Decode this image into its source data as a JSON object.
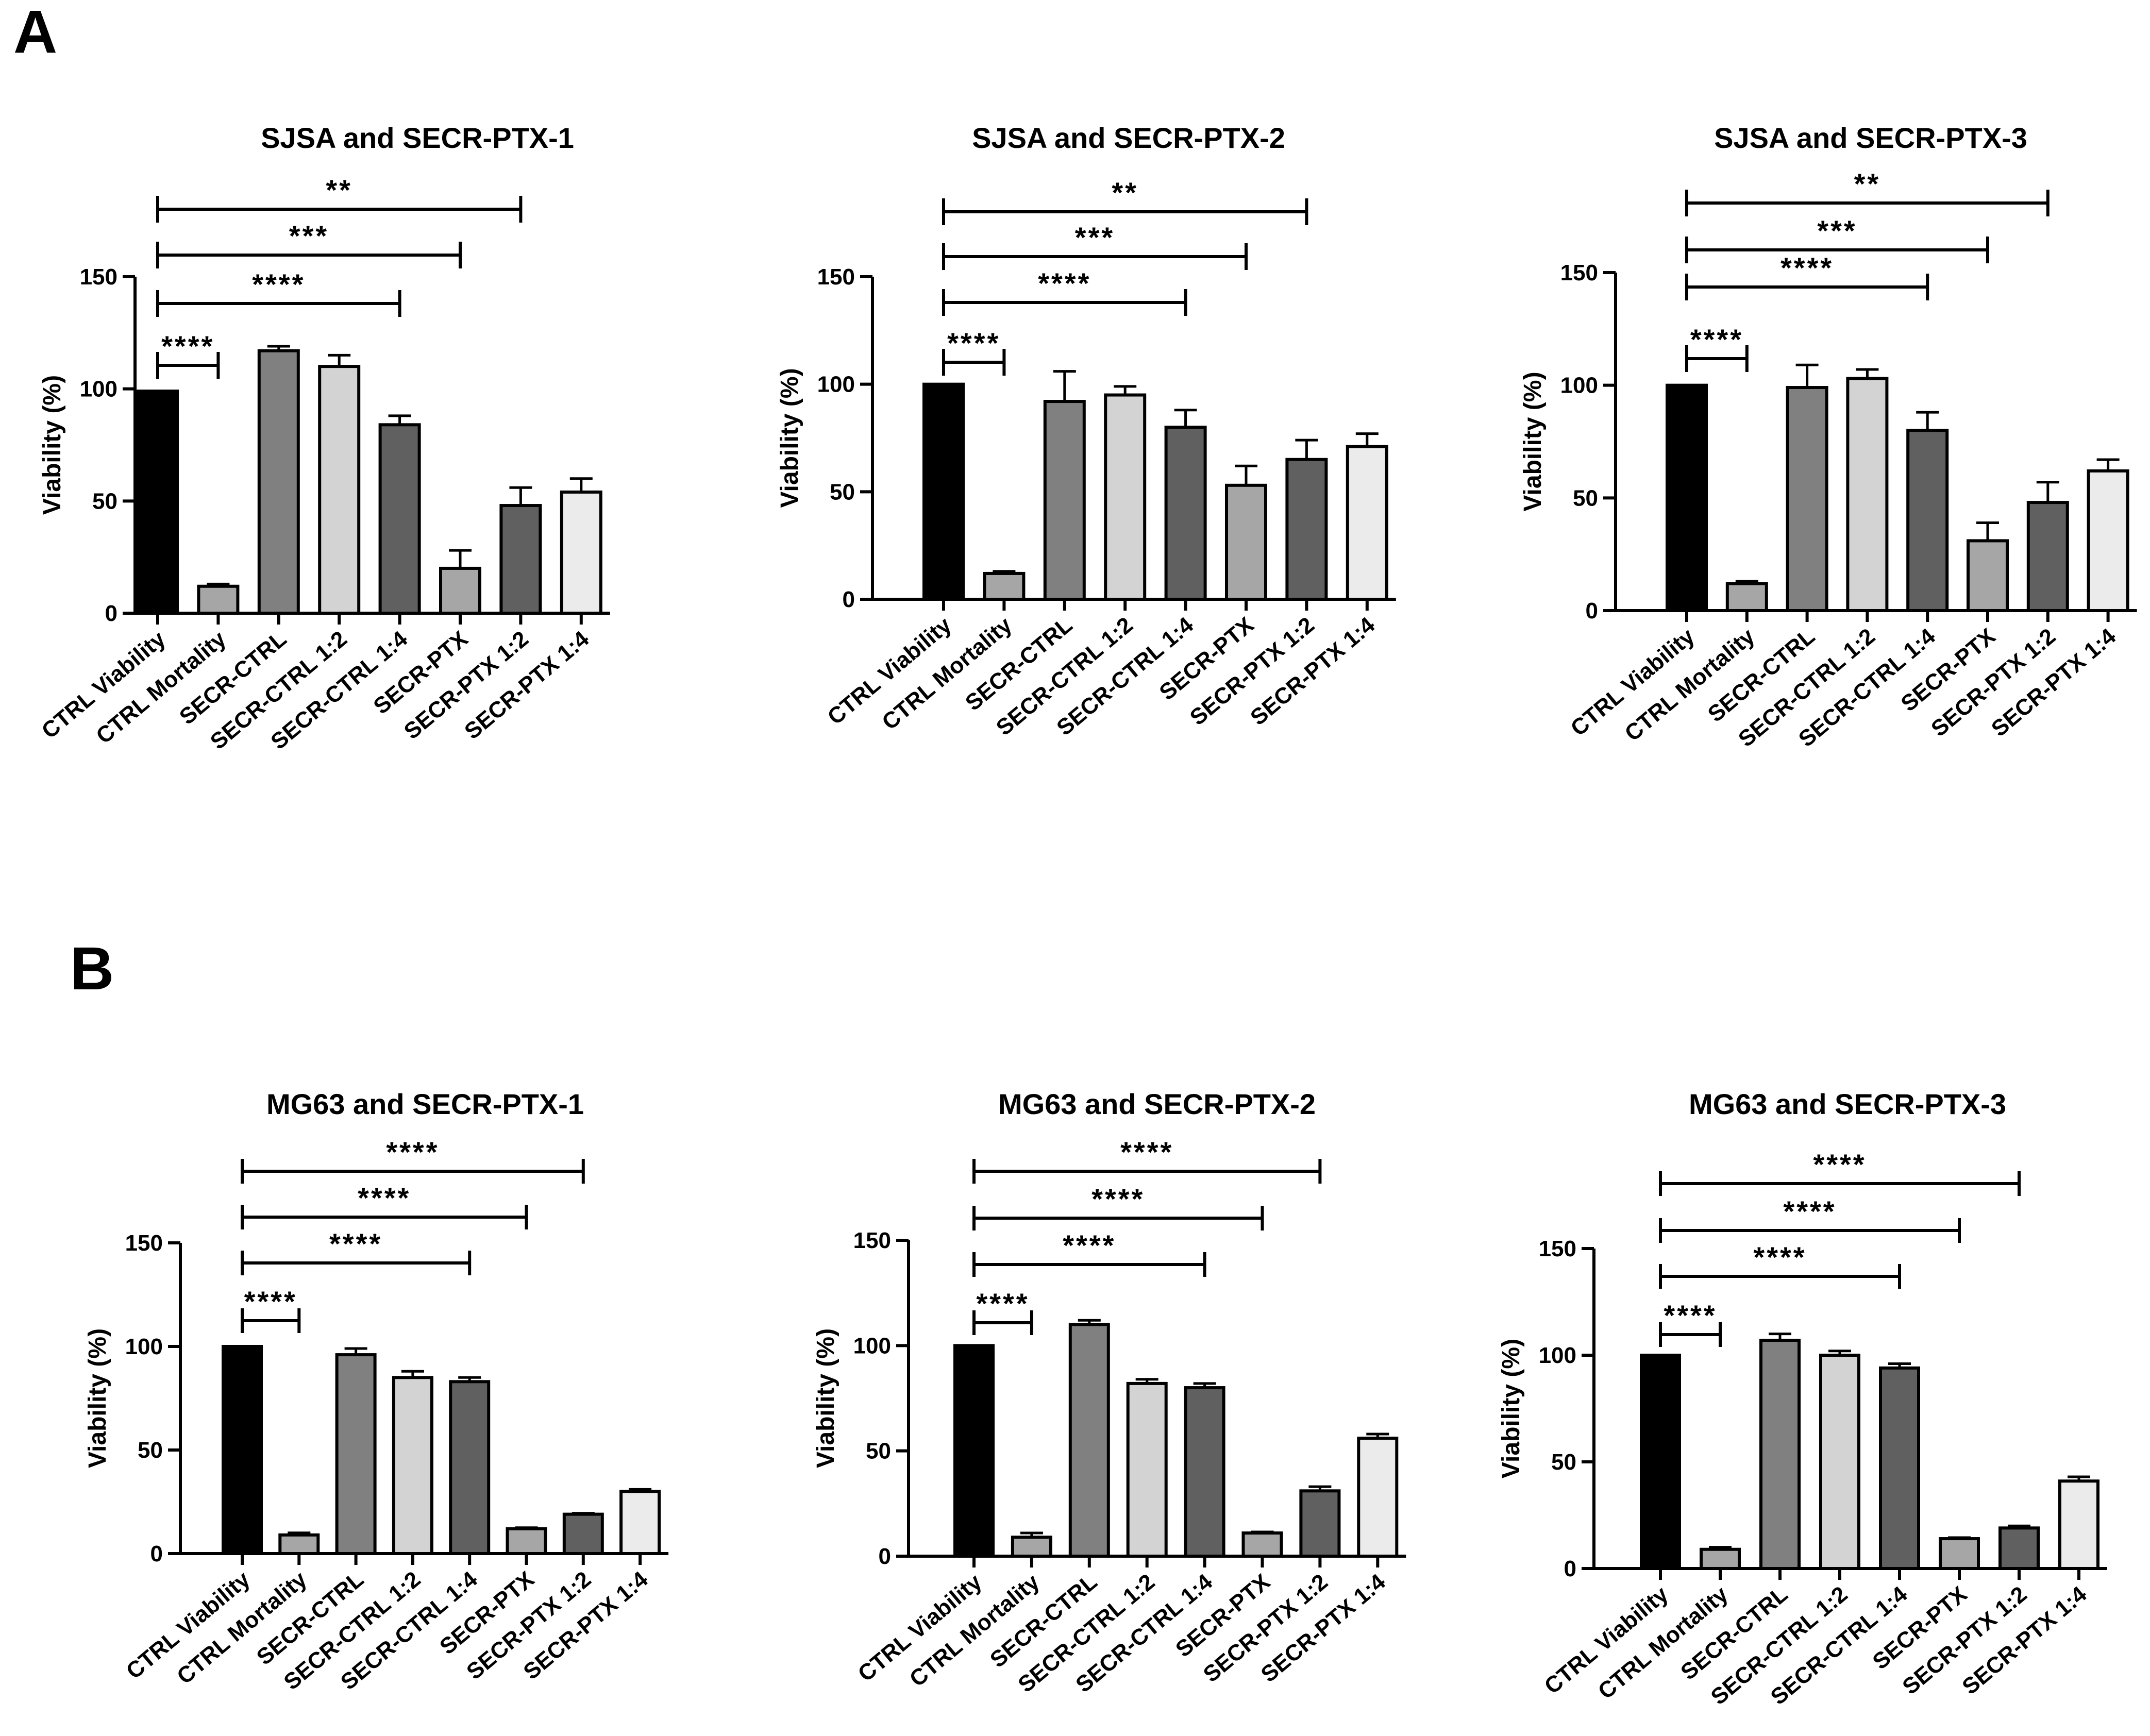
{
  "figure": {
    "panel_a_label": "A",
    "panel_b_label": "B"
  },
  "chart_data": [
    {
      "type": "bar",
      "panel": "A",
      "title": "SJSA and SECR-PTX-1",
      "xlabel": "",
      "ylabel": "Viability (%)",
      "ylim": [
        0,
        150
      ],
      "yticks": [
        0,
        50,
        100,
        150
      ],
      "categories": [
        "CTRL Viability",
        "CTRL Mortality",
        "SECR-CTRL",
        "SECR-CTRL 1:2",
        "SECR-CTRL 1:4",
        "SECR-PTX",
        "SECR-PTX 1:2",
        "SECR-PTX 1:4"
      ],
      "values": [
        99,
        12,
        117,
        110,
        84,
        20,
        48,
        54
      ],
      "errors": [
        0,
        1,
        2,
        5,
        4,
        8,
        8,
        6
      ],
      "colors": [
        "#000000",
        "#a6a6a6",
        "#808080",
        "#d3d3d3",
        "#606060",
        "#a6a6a6",
        "#606060",
        "#ebebeb"
      ],
      "significance": [
        {
          "from": 0,
          "to": 1,
          "label": "****"
        },
        {
          "from": 0,
          "to": 4,
          "label": "****"
        },
        {
          "from": 0,
          "to": 5,
          "label": "***"
        },
        {
          "from": 0,
          "to": 6,
          "label": "**"
        }
      ]
    },
    {
      "type": "bar",
      "panel": "A",
      "title": "SJSA and SECR-PTX-2",
      "xlabel": "",
      "ylabel": "Viability (%)",
      "ylim": [
        0,
        150
      ],
      "yticks": [
        0,
        50,
        100,
        150
      ],
      "categories": [
        "CTRL Viability",
        "CTRL Mortality",
        "SECR-CTRL",
        "SECR-CTRL 1:2",
        "SECR-CTRL 1:4",
        "SECR-PTX",
        "SECR-PTX 1:2",
        "SECR-PTX 1:4"
      ],
      "values": [
        100,
        12,
        92,
        95,
        80,
        53,
        65,
        71
      ],
      "errors": [
        0,
        1,
        14,
        4,
        8,
        9,
        9,
        6
      ],
      "colors": [
        "#000000",
        "#a6a6a6",
        "#808080",
        "#d3d3d3",
        "#606060",
        "#a6a6a6",
        "#606060",
        "#ebebeb"
      ],
      "significance": [
        {
          "from": 0,
          "to": 1,
          "label": "****"
        },
        {
          "from": 0,
          "to": 4,
          "label": "****"
        },
        {
          "from": 0,
          "to": 5,
          "label": "***"
        },
        {
          "from": 0,
          "to": 6,
          "label": "**"
        }
      ]
    },
    {
      "type": "bar",
      "panel": "A",
      "title": "SJSA and SECR-PTX-3",
      "xlabel": "",
      "ylabel": "Viability (%)",
      "ylim": [
        0,
        150
      ],
      "yticks": [
        0,
        50,
        100,
        150
      ],
      "categories": [
        "CTRL Viability",
        "CTRL Mortality",
        "SECR-CTRL",
        "SECR-CTRL 1:2",
        "SECR-CTRL 1:4",
        "SECR-PTX",
        "SECR-PTX 1:2",
        "SECR-PTX 1:4"
      ],
      "values": [
        100,
        12,
        99,
        103,
        80,
        31,
        48,
        62
      ],
      "errors": [
        0,
        1,
        10,
        4,
        8,
        8,
        9,
        5
      ],
      "colors": [
        "#000000",
        "#a6a6a6",
        "#808080",
        "#d3d3d3",
        "#606060",
        "#a6a6a6",
        "#606060",
        "#ebebeb"
      ],
      "significance": [
        {
          "from": 0,
          "to": 1,
          "label": "****"
        },
        {
          "from": 0,
          "to": 4,
          "label": "****"
        },
        {
          "from": 0,
          "to": 5,
          "label": "***"
        },
        {
          "from": 0,
          "to": 6,
          "label": "**"
        }
      ]
    },
    {
      "type": "bar",
      "panel": "B",
      "title": "MG63 and SECR-PTX-1",
      "xlabel": "",
      "ylabel": "Viability (%)",
      "ylim": [
        0,
        150
      ],
      "yticks": [
        0,
        50,
        100,
        150
      ],
      "categories": [
        "CTRL Viability",
        "CTRL Mortality",
        "SECR-CTRL",
        "SECR-CTRL 1:2",
        "SECR-CTRL 1:4",
        "SECR-PTX",
        "SECR-PTX 1:2",
        "SECR-PTX 1:4"
      ],
      "values": [
        100,
        9,
        96,
        85,
        83,
        12,
        19,
        30
      ],
      "errors": [
        0,
        1,
        3,
        3,
        2,
        0.5,
        0.5,
        1
      ],
      "colors": [
        "#000000",
        "#a6a6a6",
        "#808080",
        "#d3d3d3",
        "#606060",
        "#a6a6a6",
        "#606060",
        "#ebebeb"
      ],
      "significance": [
        {
          "from": 0,
          "to": 1,
          "label": "****"
        },
        {
          "from": 0,
          "to": 4,
          "label": "****"
        },
        {
          "from": 0,
          "to": 5,
          "label": "****"
        },
        {
          "from": 0,
          "to": 6,
          "label": "****"
        }
      ]
    },
    {
      "type": "bar",
      "panel": "B",
      "title": "MG63 and SECR-PTX-2",
      "xlabel": "",
      "ylabel": "Viability (%)",
      "ylim": [
        0,
        150
      ],
      "yticks": [
        0,
        50,
        100,
        150
      ],
      "categories": [
        "CTRL Viability",
        "CTRL Mortality",
        "SECR-CTRL",
        "SECR-CTRL 1:2",
        "SECR-CTRL 1:4",
        "SECR-PTX",
        "SECR-PTX 1:2",
        "SECR-PTX 1:4"
      ],
      "values": [
        100,
        9,
        110,
        82,
        80,
        11,
        31,
        56
      ],
      "errors": [
        0,
        2,
        2,
        2,
        2,
        0.5,
        2,
        2
      ],
      "colors": [
        "#000000",
        "#a6a6a6",
        "#808080",
        "#d3d3d3",
        "#606060",
        "#a6a6a6",
        "#606060",
        "#ebebeb"
      ],
      "significance": [
        {
          "from": 0,
          "to": 1,
          "label": "****"
        },
        {
          "from": 0,
          "to": 4,
          "label": "****"
        },
        {
          "from": 0,
          "to": 5,
          "label": "****"
        },
        {
          "from": 0,
          "to": 6,
          "label": "****"
        }
      ]
    },
    {
      "type": "bar",
      "panel": "B",
      "title": "MG63 and SECR-PTX-3",
      "xlabel": "",
      "ylabel": "Viability (%)",
      "ylim": [
        0,
        150
      ],
      "yticks": [
        0,
        50,
        100,
        150
      ],
      "categories": [
        "CTRL Viability",
        "CTRL Mortality",
        "SECR-CTRL",
        "SECR-CTRL 1:2",
        "SECR-CTRL 1:4",
        "SECR-PTX",
        "SECR-PTX 1:2",
        "SECR-PTX 1:4"
      ],
      "values": [
        100,
        9,
        107,
        100,
        94,
        14,
        19,
        41
      ],
      "errors": [
        0,
        1,
        3,
        2,
        2,
        0.5,
        1,
        2
      ],
      "colors": [
        "#000000",
        "#a6a6a6",
        "#808080",
        "#d3d3d3",
        "#606060",
        "#a6a6a6",
        "#606060",
        "#ebebeb"
      ],
      "significance": [
        {
          "from": 0,
          "to": 1,
          "label": "****"
        },
        {
          "from": 0,
          "to": 4,
          "label": "****"
        },
        {
          "from": 0,
          "to": 5,
          "label": "****"
        },
        {
          "from": 0,
          "to": 6,
          "label": "****"
        }
      ]
    }
  ]
}
